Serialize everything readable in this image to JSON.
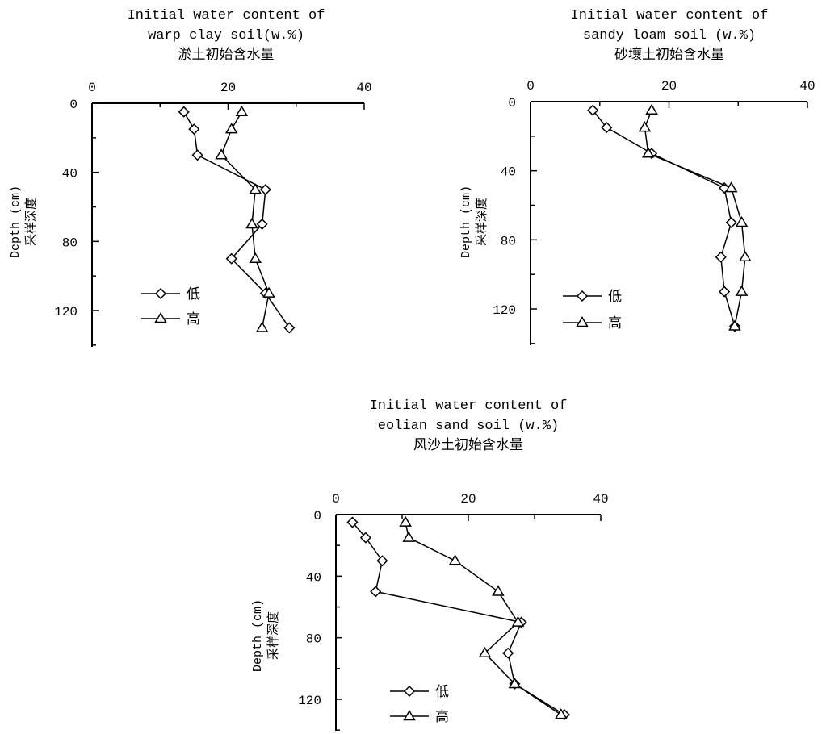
{
  "chart_data": [
    {
      "type": "line",
      "title_lines": [
        "Initial water content of",
        "warp clay soil(w.%)",
        "淤土初始含水量"
      ],
      "ylabel_lines": [
        "Depth (cm)",
        "采样深度"
      ],
      "x_ticks": [
        "0",
        "20",
        "40"
      ],
      "y_ticks": [
        "0",
        "40",
        "80",
        "120"
      ],
      "xlim": [
        0,
        40
      ],
      "ylim": [
        0,
        140
      ],
      "x_axis_position": "top",
      "y_inverted": true,
      "legend_position": "bottom-left",
      "series": [
        {
          "name": "低",
          "marker": "diamond",
          "x": [
            13.5,
            15,
            15.5,
            25.5,
            25,
            20.5,
            25.5,
            29
          ],
          "y": [
            5,
            15,
            30,
            50,
            70,
            90,
            110,
            130
          ]
        },
        {
          "name": "高",
          "marker": "triangle",
          "x": [
            22,
            20.5,
            19,
            24,
            23.5,
            24,
            26,
            25
          ],
          "y": [
            5,
            15,
            30,
            50,
            70,
            90,
            110,
            130
          ]
        }
      ]
    },
    {
      "type": "line",
      "title_lines": [
        "Initial water content of",
        "sandy loam soil (w.%)",
        "砂壤土初始含水量"
      ],
      "ylabel_lines": [
        "Depth (cm)",
        "采样深度"
      ],
      "x_ticks": [
        "0",
        "20",
        "40"
      ],
      "y_ticks": [
        "0",
        "40",
        "80",
        "120"
      ],
      "xlim": [
        0,
        40
      ],
      "ylim": [
        0,
        140
      ],
      "x_axis_position": "top",
      "y_inverted": true,
      "legend_position": "bottom-left",
      "series": [
        {
          "name": "低",
          "marker": "diamond",
          "x": [
            9,
            11,
            17.5,
            28,
            29,
            27.5,
            28,
            29.5
          ],
          "y": [
            5,
            15,
            30,
            50,
            70,
            90,
            110,
            130
          ]
        },
        {
          "name": "高",
          "marker": "triangle",
          "x": [
            17.5,
            16.5,
            17,
            29,
            30.5,
            31,
            30.5,
            29.5
          ],
          "y": [
            5,
            15,
            30,
            50,
            70,
            90,
            110,
            130
          ]
        }
      ]
    },
    {
      "type": "line",
      "title_lines": [
        "Initial water content of",
        "eolian sand soil (w.%)",
        "风沙土初始含水量"
      ],
      "ylabel_lines": [
        "Depth (cm)",
        "采样深度"
      ],
      "x_ticks": [
        "0",
        "20",
        "40"
      ],
      "y_ticks": [
        "0",
        "40",
        "80",
        "120"
      ],
      "xlim": [
        0,
        40
      ],
      "ylim": [
        0,
        140
      ],
      "x_axis_position": "top",
      "y_inverted": true,
      "legend_position": "bottom-left",
      "series": [
        {
          "name": "低",
          "marker": "diamond",
          "x": [
            2.5,
            4.5,
            7,
            6,
            28,
            26,
            27,
            34.5
          ],
          "y": [
            5,
            15,
            30,
            50,
            70,
            90,
            110,
            130
          ]
        },
        {
          "name": "高",
          "marker": "triangle",
          "x": [
            10.5,
            11,
            18,
            24.5,
            27.5,
            22.5,
            27,
            34
          ],
          "y": [
            5,
            15,
            30,
            50,
            70,
            90,
            110,
            130
          ]
        }
      ]
    }
  ]
}
